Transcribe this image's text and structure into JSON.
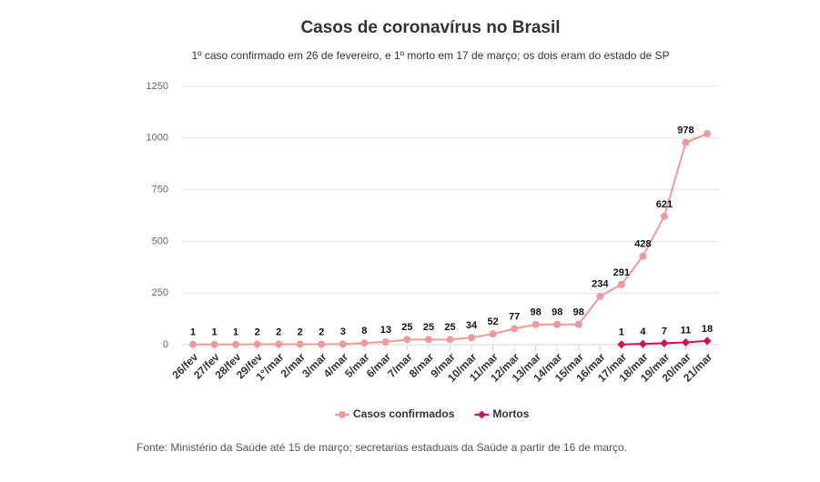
{
  "chart_data": {
    "type": "line",
    "title": "Casos de coronavírus no Brasil",
    "subtitle": "1º caso confirmado em 26 de fevereiro, e 1º morto em 17 de março; os dois eram do estado de SP",
    "source": "Fonte: Ministério da Saúde até 15 de março; secretarias estaduais da Saúde a partir de 16 de março.",
    "categories": [
      "26/fev",
      "27/fev",
      "28/fev",
      "29/fev",
      "1°/mar",
      "2/mar",
      "3/mar",
      "4/mar",
      "5/mar",
      "6/mar",
      "7/mar",
      "8/mar",
      "9/mar",
      "10/mar",
      "11/mar",
      "12/mar",
      "13/mar",
      "14/mar",
      "15/mar",
      "16/mar",
      "17/mar",
      "18/mar",
      "19/mar",
      "20/mar",
      "21/mar"
    ],
    "series": [
      {
        "name": "Casos confirmados",
        "color": "#ef9a9a",
        "marker": "circle",
        "values": [
          1,
          1,
          1,
          2,
          2,
          2,
          2,
          3,
          8,
          13,
          25,
          25,
          25,
          34,
          52,
          77,
          98,
          98,
          98,
          234,
          291,
          428,
          621,
          978,
          1021
        ],
        "value_labels": [
          "1",
          "1",
          "1",
          "2",
          "2",
          "2",
          "2",
          "3",
          "8",
          "13",
          "25",
          "25",
          "25",
          "34",
          "52",
          "77",
          "98",
          "98",
          "98",
          "234",
          "291",
          "428",
          "621",
          "978",
          null
        ]
      },
      {
        "name": "Mortos",
        "color": "#d0105a",
        "marker": "diamond",
        "values": [
          null,
          null,
          null,
          null,
          null,
          null,
          null,
          null,
          null,
          null,
          null,
          null,
          null,
          null,
          null,
          null,
          null,
          null,
          null,
          null,
          1,
          4,
          7,
          11,
          18
        ],
        "value_labels": [
          null,
          null,
          null,
          null,
          null,
          null,
          null,
          null,
          null,
          null,
          null,
          null,
          null,
          null,
          null,
          null,
          null,
          null,
          null,
          null,
          "1",
          "4",
          "7",
          "11",
          "18"
        ]
      }
    ],
    "ylim": [
      0,
      1250
    ],
    "yticks": [
      0,
      250,
      500,
      750,
      1000,
      1250
    ],
    "grid": true,
    "legend": "bottom"
  }
}
